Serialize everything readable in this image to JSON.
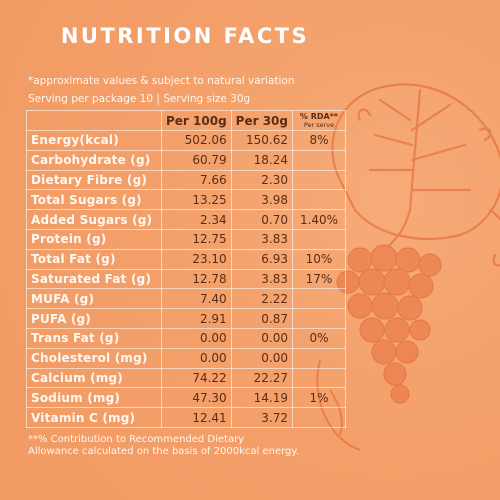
{
  "title": "NUTRITION FACTS",
  "note": "*approximate values & subject to natural variation",
  "serving": "Serving per package 10  |  Serving size 30g",
  "columns": {
    "per100": "Per 100g",
    "per30": "Per 30g",
    "rda": "% RDA**",
    "rda_sub": "Per serve"
  },
  "rows": [
    {
      "name": "Energy(kcal)",
      "per100": "502.06",
      "per30": "150.62",
      "rda": "8%"
    },
    {
      "name": "Carbohydrate (g)",
      "per100": "60.79",
      "per30": "18.24",
      "rda": ""
    },
    {
      "name": "Dietary Fibre (g)",
      "per100": "7.66",
      "per30": "2.30",
      "rda": ""
    },
    {
      "name": "Total Sugars (g)",
      "per100": "13.25",
      "per30": "3.98",
      "rda": ""
    },
    {
      "name": "Added Sugars (g)",
      "per100": "2.34",
      "per30": "0.70",
      "rda": "1.40%"
    },
    {
      "name": "Protein (g)",
      "per100": "12.75",
      "per30": "3.83",
      "rda": ""
    },
    {
      "name": "Total Fat (g)",
      "per100": "23.10",
      "per30": "6.93",
      "rda": "10%"
    },
    {
      "name": "Saturated Fat (g)",
      "per100": "12.78",
      "per30": "3.83",
      "rda": "17%"
    },
    {
      "name": "MUFA (g)",
      "per100": "7.40",
      "per30": "2.22",
      "rda": ""
    },
    {
      "name": "PUFA (g)",
      "per100": "2.91",
      "per30": "0.87",
      "rda": ""
    },
    {
      "name": "Trans Fat (g)",
      "per100": "0.00",
      "per30": "0.00",
      "rda": "0%"
    },
    {
      "name": "Cholesterol (mg)",
      "per100": "0.00",
      "per30": "0.00",
      "rda": ""
    },
    {
      "name": "Calcium (mg)",
      "per100": "74.22",
      "per30": "22.27",
      "rda": ""
    },
    {
      "name": "Sodium (mg)",
      "per100": "47.30",
      "per30": "14.19",
      "rda": "1%"
    },
    {
      "name": "Vitamin C (mg)",
      "per100": "12.41",
      "per30": "3.72",
      "rda": ""
    }
  ],
  "footer": {
    "line1": "**% Contribution to Recommended Dietary",
    "line2": "Allowance calculated on the basis of 2000kcal energy."
  },
  "colors": {
    "background": "#f4a06a",
    "title_text": "#ffffff",
    "value_text": "#5a2d14",
    "illustration": "#e3683b"
  },
  "icons": [
    "grape-vine-illustration"
  ]
}
